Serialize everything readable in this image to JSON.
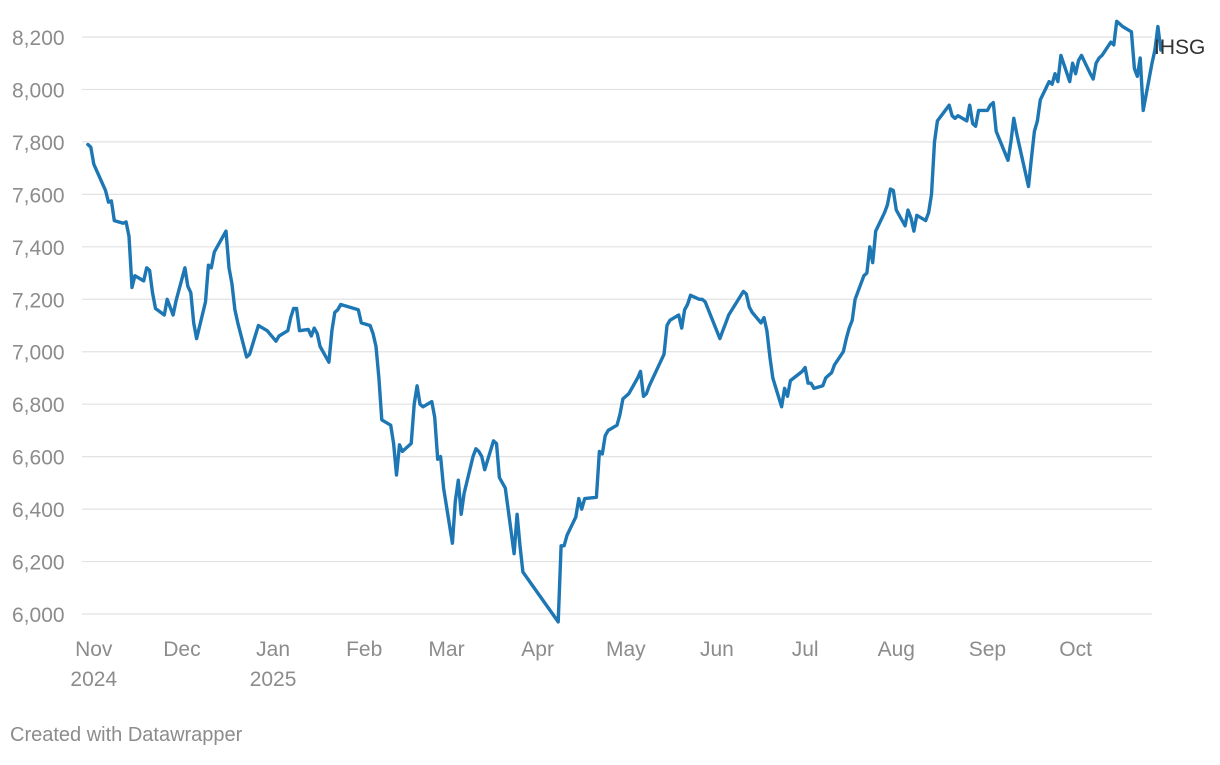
{
  "colors": {
    "line": "#1d77b4",
    "grid": "#e2e2e2",
    "tick_text": "#8c8c8c",
    "label_text": "#333333"
  },
  "credit": "Created with Datawrapper",
  "chart_data": {
    "type": "line",
    "title": "",
    "xlabel": "",
    "ylabel": "",
    "ylim": [
      6000,
      8200
    ],
    "xlim": [
      "2024-10-28",
      "2025-10-27"
    ],
    "grid": "horizontal",
    "yticks": [
      6000,
      6200,
      6400,
      6600,
      6800,
      7000,
      7200,
      7400,
      7600,
      7800,
      8000,
      8200
    ],
    "ytick_labels": [
      "6,000",
      "6,200",
      "6,400",
      "6,600",
      "6,800",
      "7,000",
      "7,200",
      "7,400",
      "7,600",
      "7,800",
      "8,000",
      "8,200"
    ],
    "xticks": [
      {
        "date": "2024-11-01",
        "label": "Nov",
        "sublabel": "2024"
      },
      {
        "date": "2024-12-01",
        "label": "Dec",
        "sublabel": ""
      },
      {
        "date": "2025-01-01",
        "label": "Jan",
        "sublabel": "2025"
      },
      {
        "date": "2025-02-01",
        "label": "Feb",
        "sublabel": ""
      },
      {
        "date": "2025-03-01",
        "label": "Mar",
        "sublabel": ""
      },
      {
        "date": "2025-04-01",
        "label": "Apr",
        "sublabel": ""
      },
      {
        "date": "2025-05-01",
        "label": "May",
        "sublabel": ""
      },
      {
        "date": "2025-06-01",
        "label": "Jun",
        "sublabel": ""
      },
      {
        "date": "2025-07-01",
        "label": "Jul",
        "sublabel": ""
      },
      {
        "date": "2025-08-01",
        "label": "Aug",
        "sublabel": ""
      },
      {
        "date": "2025-09-01",
        "label": "Sep",
        "sublabel": ""
      },
      {
        "date": "2025-10-01",
        "label": "Oct",
        "sublabel": ""
      }
    ],
    "series": [
      {
        "name": "IHSG",
        "x": [
          "2024-10-30",
          "2024-10-31",
          "2024-11-01",
          "2024-11-04",
          "2024-11-05",
          "2024-11-06",
          "2024-11-07",
          "2024-11-08",
          "2024-11-11",
          "2024-11-12",
          "2024-11-13",
          "2024-11-14",
          "2024-11-15",
          "2024-11-18",
          "2024-11-19",
          "2024-11-20",
          "2024-11-21",
          "2024-11-22",
          "2024-11-25",
          "2024-11-26",
          "2024-11-28",
          "2024-11-29",
          "2024-12-02",
          "2024-12-03",
          "2024-12-04",
          "2024-12-05",
          "2024-12-06",
          "2024-12-09",
          "2024-12-10",
          "2024-12-11",
          "2024-12-12",
          "2024-12-13",
          "2024-12-16",
          "2024-12-17",
          "2024-12-18",
          "2024-12-19",
          "2024-12-20",
          "2024-12-23",
          "2024-12-24",
          "2024-12-27",
          "2024-12-30",
          "2025-01-02",
          "2025-01-03",
          "2025-01-06",
          "2025-01-07",
          "2025-01-08",
          "2025-01-09",
          "2025-01-10",
          "2025-01-13",
          "2025-01-14",
          "2025-01-15",
          "2025-01-16",
          "2025-01-17",
          "2025-01-20",
          "2025-01-21",
          "2025-01-22",
          "2025-01-23",
          "2025-01-24",
          "2025-01-30",
          "2025-01-31",
          "2025-02-03",
          "2025-02-04",
          "2025-02-05",
          "2025-02-06",
          "2025-02-07",
          "2025-02-10",
          "2025-02-11",
          "2025-02-12",
          "2025-02-13",
          "2025-02-14",
          "2025-02-17",
          "2025-02-18",
          "2025-02-19",
          "2025-02-20",
          "2025-02-21",
          "2025-02-24",
          "2025-02-25",
          "2025-02-26",
          "2025-02-27",
          "2025-02-28",
          "2025-03-03",
          "2025-03-04",
          "2025-03-05",
          "2025-03-06",
          "2025-03-07",
          "2025-03-10",
          "2025-03-11",
          "2025-03-12",
          "2025-03-13",
          "2025-03-14",
          "2025-03-17",
          "2025-03-18",
          "2025-03-19",
          "2025-03-20",
          "2025-03-21",
          "2025-03-24",
          "2025-03-25",
          "2025-03-26",
          "2025-03-27",
          "2025-04-08",
          "2025-04-09",
          "2025-04-10",
          "2025-04-11",
          "2025-04-14",
          "2025-04-15",
          "2025-04-16",
          "2025-04-17",
          "2025-04-21",
          "2025-04-22",
          "2025-04-23",
          "2025-04-24",
          "2025-04-25",
          "2025-04-28",
          "2025-04-29",
          "2025-04-30",
          "2025-05-02",
          "2025-05-05",
          "2025-05-06",
          "2025-05-07",
          "2025-05-08",
          "2025-05-09",
          "2025-05-14",
          "2025-05-15",
          "2025-05-16",
          "2025-05-19",
          "2025-05-20",
          "2025-05-21",
          "2025-05-22",
          "2025-05-23",
          "2025-05-26",
          "2025-05-27",
          "2025-05-28",
          "2025-06-02",
          "2025-06-03",
          "2025-06-04",
          "2025-06-05",
          "2025-06-10",
          "2025-06-11",
          "2025-06-12",
          "2025-06-13",
          "2025-06-16",
          "2025-06-17",
          "2025-06-18",
          "2025-06-19",
          "2025-06-20",
          "2025-06-23",
          "2025-06-24",
          "2025-06-25",
          "2025-06-26",
          "2025-06-30",
          "2025-07-01",
          "2025-07-02",
          "2025-07-03",
          "2025-07-04",
          "2025-07-07",
          "2025-07-08",
          "2025-07-09",
          "2025-07-10",
          "2025-07-11",
          "2025-07-14",
          "2025-07-15",
          "2025-07-16",
          "2025-07-17",
          "2025-07-18",
          "2025-07-21",
          "2025-07-22",
          "2025-07-23",
          "2025-07-24",
          "2025-07-25",
          "2025-07-28",
          "2025-07-29",
          "2025-07-30",
          "2025-07-31",
          "2025-08-01",
          "2025-08-04",
          "2025-08-05",
          "2025-08-06",
          "2025-08-07",
          "2025-08-08",
          "2025-08-11",
          "2025-08-12",
          "2025-08-13",
          "2025-08-14",
          "2025-08-15",
          "2025-08-19",
          "2025-08-20",
          "2025-08-21",
          "2025-08-22",
          "2025-08-25",
          "2025-08-26",
          "2025-08-27",
          "2025-08-28",
          "2025-08-29",
          "2025-09-01",
          "2025-09-02",
          "2025-09-03",
          "2025-09-04",
          "2025-09-08",
          "2025-09-09",
          "2025-09-10",
          "2025-09-11",
          "2025-09-12",
          "2025-09-15",
          "2025-09-16",
          "2025-09-17",
          "2025-09-18",
          "2025-09-19",
          "2025-09-22",
          "2025-09-23",
          "2025-09-24",
          "2025-09-25",
          "2025-09-26",
          "2025-09-29",
          "2025-09-30",
          "2025-10-01",
          "2025-10-02",
          "2025-10-03",
          "2025-10-06",
          "2025-10-07",
          "2025-10-08",
          "2025-10-09",
          "2025-10-10",
          "2025-10-13",
          "2025-10-14",
          "2025-10-15",
          "2025-10-16",
          "2025-10-17",
          "2025-10-20",
          "2025-10-21",
          "2025-10-22",
          "2025-10-23",
          "2025-10-24"
        ],
        "values": [
          7790,
          7780,
          7715,
          7640,
          7615,
          7570,
          7575,
          7500,
          7490,
          7495,
          7440,
          7245,
          7290,
          7270,
          7320,
          7310,
          7225,
          7165,
          7140,
          7200,
          7140,
          7195,
          7320,
          7250,
          7225,
          7110,
          7050,
          7190,
          7330,
          7320,
          7380,
          7400,
          7460,
          7320,
          7260,
          7160,
          7110,
          6980,
          6990,
          7100,
          7080,
          7040,
          7060,
          7080,
          7130,
          7165,
          7165,
          7080,
          7085,
          7060,
          7090,
          7070,
          7020,
          6960,
          7080,
          7150,
          7160,
          7180,
          7160,
          7110,
          7100,
          7070,
          7020,
          6900,
          6740,
          6720,
          6650,
          6530,
          6645,
          6620,
          6650,
          6800,
          6870,
          6800,
          6790,
          6810,
          6750,
          6590,
          6600,
          6480,
          6270,
          6430,
          6510,
          6380,
          6460,
          6600,
          6630,
          6620,
          6600,
          6550,
          6660,
          6650,
          6520,
          6500,
          6480,
          6230,
          6380,
          6260,
          6160,
          5970,
          6260,
          6260,
          6300,
          6370,
          6440,
          6400,
          6440,
          6445,
          6620,
          6610,
          6680,
          6700,
          6720,
          6760,
          6820,
          6840,
          6900,
          6925,
          6830,
          6840,
          6870,
          6990,
          7100,
          7120,
          7140,
          7090,
          7160,
          7180,
          7215,
          7200,
          7200,
          7190,
          7050,
          7080,
          7110,
          7140,
          7230,
          7220,
          7170,
          7150,
          7110,
          7130,
          7080,
          6980,
          6900,
          6790,
          6860,
          6830,
          6890,
          6925,
          6940,
          6880,
          6880,
          6860,
          6870,
          6900,
          6910,
          6920,
          6950,
          7000,
          7050,
          7090,
          7120,
          7200,
          7290,
          7300,
          7400,
          7340,
          7460,
          7530,
          7560,
          7620,
          7615,
          7540,
          7480,
          7540,
          7510,
          7460,
          7520,
          7500,
          7530,
          7600,
          7800,
          7880,
          7940,
          7900,
          7890,
          7900,
          7880,
          7940,
          7870,
          7860,
          7920,
          7920,
          7940,
          7950,
          7840,
          7730,
          7800,
          7890,
          7830,
          7780,
          7630,
          7740,
          7840,
          7880,
          7960,
          8030,
          8020,
          8060,
          8030,
          8130,
          8030,
          8100,
          8060,
          8110,
          8130,
          8060,
          8040,
          8100,
          8120,
          8130,
          8180,
          8170,
          8260,
          8250,
          8240,
          8220,
          8080,
          8050,
          8120,
          7920
        ]
      }
    ],
    "tail_points": [
      {
        "x": "2025-10-27",
        "y": 8100
      },
      {
        "x": "2025-10-28",
        "y": 8150
      },
      {
        "x": "2025-10-29",
        "y": 8240
      },
      {
        "x": "2025-10-30",
        "y": 8150
      }
    ],
    "legend": "inline-right"
  }
}
